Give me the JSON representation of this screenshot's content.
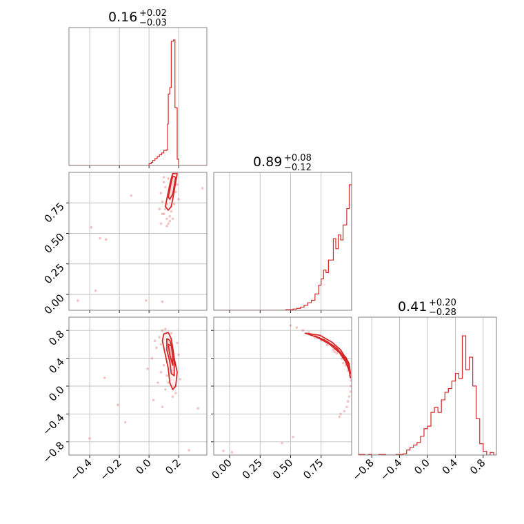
{
  "chart_data": {
    "type": "corner",
    "color": "#d62728",
    "parameters": [
      {
        "median": "0.16",
        "plus": "+0.02",
        "minus": "−0.03",
        "range": [
          -0.54,
          0.39
        ]
      },
      {
        "median": "0.89",
        "plus": "+0.08",
        "minus": "−0.12",
        "range": [
          -0.13,
          1.0
        ]
      },
      {
        "median": "0.41",
        "plus": "+0.20",
        "minus": "−0.28",
        "range": [
          -0.99,
          0.99
        ]
      }
    ],
    "ticks": [
      [
        {
          "v": -0.4,
          "l": "−0.4"
        },
        {
          "v": -0.2,
          "l": "−0.2"
        },
        {
          "v": 0.0,
          "l": "0.0"
        },
        {
          "v": 0.2,
          "l": "0.2"
        }
      ],
      [
        {
          "v": 0.0,
          "l": "0.00"
        },
        {
          "v": 0.25,
          "l": "0.25"
        },
        {
          "v": 0.5,
          "l": "0.50"
        },
        {
          "v": 0.75,
          "l": "0.75"
        }
      ],
      [
        {
          "v": -0.8,
          "l": "−0.8"
        },
        {
          "v": -0.4,
          "l": "−0.4"
        },
        {
          "v": 0.0,
          "l": "0.0"
        },
        {
          "v": 0.4,
          "l": "0.4"
        },
        {
          "v": 0.8,
          "l": "0.8"
        }
      ]
    ],
    "histograms": [
      {
        "bins": [
          [
            -0.03,
            0.0
          ],
          [
            0.0,
            0.015
          ],
          [
            0.015,
            0.025
          ],
          [
            0.025,
            0.04
          ],
          [
            0.04,
            0.055
          ],
          [
            0.055,
            0.07
          ],
          [
            0.07,
            0.085
          ],
          [
            0.085,
            0.1
          ],
          [
            0.1,
            0.12
          ],
          [
            0.12,
            0.125
          ],
          [
            0.125,
            0.33
          ],
          [
            0.13,
            0.57
          ],
          [
            0.14,
            0.62
          ],
          [
            0.15,
            0.99
          ],
          [
            0.165,
            1.0
          ],
          [
            0.175,
            0.46
          ],
          [
            0.18,
            0.46
          ],
          [
            0.19,
            0.05
          ],
          [
            0.2,
            0.0
          ],
          [
            0.21,
            0.0
          ]
        ]
      },
      {
        "bins": [
          [
            0.43,
            0.0
          ],
          [
            0.46,
            0.005
          ],
          [
            0.49,
            0.005
          ],
          [
            0.52,
            0.01
          ],
          [
            0.55,
            0.015
          ],
          [
            0.58,
            0.025
          ],
          [
            0.61,
            0.04
          ],
          [
            0.64,
            0.06
          ],
          [
            0.67,
            0.08
          ],
          [
            0.7,
            0.13
          ],
          [
            0.73,
            0.2
          ],
          [
            0.75,
            0.25
          ],
          [
            0.77,
            0.32
          ],
          [
            0.79,
            0.3
          ],
          [
            0.81,
            0.4
          ],
          [
            0.83,
            0.4
          ],
          [
            0.85,
            0.57
          ],
          [
            0.87,
            0.49
          ],
          [
            0.89,
            0.6
          ],
          [
            0.91,
            0.56
          ],
          [
            0.93,
            0.68
          ],
          [
            0.95,
            0.68
          ],
          [
            0.96,
            0.81
          ],
          [
            0.98,
            1.0
          ]
        ]
      },
      {
        "bins": [
          [
            -0.99,
            0.005
          ],
          [
            -0.95,
            0.005
          ],
          [
            -0.9,
            0.0
          ],
          [
            -0.85,
            0.005
          ],
          [
            -0.8,
            0.0
          ],
          [
            -0.7,
            0.005
          ],
          [
            -0.65,
            0.005
          ],
          [
            -0.6,
            0.0
          ],
          [
            -0.55,
            0.0
          ],
          [
            -0.5,
            0.0
          ],
          [
            -0.45,
            0.005
          ],
          [
            -0.4,
            0.005
          ],
          [
            -0.35,
            0.01
          ],
          [
            -0.3,
            0.04
          ],
          [
            -0.25,
            0.06
          ],
          [
            -0.2,
            0.08
          ],
          [
            -0.15,
            0.1
          ],
          [
            -0.1,
            0.15
          ],
          [
            -0.05,
            0.21
          ],
          [
            0.0,
            0.23
          ],
          [
            0.05,
            0.34
          ],
          [
            0.1,
            0.38
          ],
          [
            0.15,
            0.34
          ],
          [
            0.2,
            0.44
          ],
          [
            0.25,
            0.5
          ],
          [
            0.3,
            0.53
          ],
          [
            0.35,
            0.59
          ],
          [
            0.4,
            0.65
          ],
          [
            0.45,
            0.61
          ],
          [
            0.5,
            0.95
          ],
          [
            0.55,
            0.68
          ],
          [
            0.6,
            0.78
          ],
          [
            0.65,
            0.55
          ],
          [
            0.7,
            0.29
          ],
          [
            0.75,
            0.09
          ],
          [
            0.8,
            0.03
          ],
          [
            0.85,
            0.0
          ],
          [
            0.9,
            0.02
          ],
          [
            0.95,
            0.0
          ]
        ]
      }
    ],
    "pairs": [
      {
        "x": 0,
        "y": 1,
        "contours": [
          [
            [
              0.11,
              0.72
            ],
            [
              0.12,
              0.78
            ],
            [
              0.13,
              0.84
            ],
            [
              0.14,
              0.9
            ],
            [
              0.15,
              0.95
            ],
            [
              0.16,
              0.99
            ],
            [
              0.19,
              0.99
            ],
            [
              0.18,
              0.92
            ],
            [
              0.17,
              0.85
            ],
            [
              0.16,
              0.78
            ],
            [
              0.15,
              0.72
            ],
            [
              0.13,
              0.69
            ],
            [
              0.11,
              0.72
            ]
          ],
          [
            [
              0.13,
              0.8
            ],
            [
              0.14,
              0.86
            ],
            [
              0.15,
              0.92
            ],
            [
              0.16,
              0.97
            ],
            [
              0.18,
              0.96
            ],
            [
              0.17,
              0.89
            ],
            [
              0.16,
              0.82
            ],
            [
              0.14,
              0.78
            ],
            [
              0.13,
              0.8
            ]
          ]
        ],
        "scatter": [
          [
            0.1,
            0.66
          ],
          [
            0.12,
            0.62
          ],
          [
            0.13,
            0.58
          ],
          [
            0.11,
            0.7
          ],
          [
            0.14,
            0.64
          ],
          [
            0.09,
            0.76
          ],
          [
            0.15,
            0.68
          ],
          [
            0.12,
            0.74
          ],
          [
            0.08,
            0.83
          ],
          [
            0.17,
            0.74
          ],
          [
            0.11,
            0.88
          ],
          [
            0.1,
            0.92
          ],
          [
            0.18,
            0.84
          ],
          [
            0.13,
            0.95
          ],
          [
            0.09,
            0.66
          ],
          [
            0.14,
            0.6
          ],
          [
            0.12,
            0.56
          ],
          [
            0.1,
            0.96
          ],
          [
            0.16,
            0.62
          ],
          [
            0.19,
            0.9
          ],
          [
            0.07,
            0.7
          ],
          [
            0.08,
            0.58
          ],
          [
            0.2,
            0.78
          ],
          [
            -0.39,
            0.55
          ],
          [
            -0.33,
            0.46
          ],
          [
            -0.29,
            0.45
          ],
          [
            -0.12,
            0.81
          ],
          [
            -0.02,
            -0.05
          ],
          [
            -0.36,
            0.03
          ],
          [
            0.09,
            -0.06
          ],
          [
            -0.48,
            -0.05
          ],
          [
            0.36,
            0.87
          ]
        ]
      },
      {
        "x": 0,
        "y": 2,
        "contours": [
          [
            [
              0.1,
              0.75
            ],
            [
              0.09,
              0.65
            ],
            [
              0.11,
              0.45
            ],
            [
              0.13,
              0.25
            ],
            [
              0.14,
              0.05
            ],
            [
              0.16,
              -0.05
            ],
            [
              0.18,
              0.0
            ],
            [
              0.19,
              0.2
            ],
            [
              0.17,
              0.4
            ],
            [
              0.16,
              0.55
            ],
            [
              0.15,
              0.68
            ],
            [
              0.13,
              0.77
            ],
            [
              0.1,
              0.75
            ]
          ],
          [
            [
              0.12,
              0.68
            ],
            [
              0.12,
              0.52
            ],
            [
              0.14,
              0.35
            ],
            [
              0.15,
              0.18
            ],
            [
              0.17,
              0.15
            ],
            [
              0.17,
              0.35
            ],
            [
              0.16,
              0.52
            ],
            [
              0.14,
              0.66
            ],
            [
              0.12,
              0.68
            ]
          ],
          [
            [
              0.13,
              0.6
            ],
            [
              0.14,
              0.45
            ],
            [
              0.16,
              0.3
            ],
            [
              0.16,
              0.45
            ],
            [
              0.15,
              0.58
            ],
            [
              0.13,
              0.6
            ]
          ]
        ],
        "scatter": [
          [
            0.09,
            0.8
          ],
          [
            0.07,
            0.7
          ],
          [
            0.11,
            0.82
          ],
          [
            0.15,
            0.76
          ],
          [
            0.08,
            0.6
          ],
          [
            0.1,
            0.3
          ],
          [
            0.12,
            0.15
          ],
          [
            0.18,
            -0.1
          ],
          [
            0.05,
            0.55
          ],
          [
            0.2,
            0.45
          ],
          [
            0.08,
            0.2
          ],
          [
            0.16,
            -0.15
          ],
          [
            0.06,
            0.05
          ],
          [
            0.11,
            -0.05
          ],
          [
            0.19,
            0.62
          ],
          [
            0.13,
            0.05
          ],
          [
            0.02,
            0.4
          ],
          [
            0.03,
            -0.2
          ],
          [
            0.04,
            0.65
          ],
          [
            0.21,
            0.1
          ],
          [
            -0.01,
            0.25
          ],
          [
            0.09,
            -0.3
          ],
          [
            -0.4,
            -0.75
          ],
          [
            -0.16,
            -0.52
          ],
          [
            -0.21,
            -0.27
          ],
          [
            0.33,
            -0.32
          ],
          [
            -0.3,
            0.12
          ],
          [
            0.27,
            -0.92
          ]
        ]
      },
      {
        "x": 1,
        "y": 2,
        "contours": [
          [
            [
              0.62,
              0.76
            ],
            [
              0.72,
              0.7
            ],
            [
              0.82,
              0.6
            ],
            [
              0.9,
              0.48
            ],
            [
              0.95,
              0.35
            ],
            [
              0.98,
              0.22
            ],
            [
              0.99,
              0.12
            ],
            [
              0.98,
              0.25
            ],
            [
              0.96,
              0.38
            ],
            [
              0.91,
              0.52
            ],
            [
              0.84,
              0.63
            ],
            [
              0.74,
              0.73
            ],
            [
              0.62,
              0.76
            ]
          ],
          [
            [
              0.7,
              0.72
            ],
            [
              0.78,
              0.66
            ],
            [
              0.86,
              0.57
            ],
            [
              0.92,
              0.45
            ],
            [
              0.96,
              0.33
            ],
            [
              0.94,
              0.42
            ],
            [
              0.88,
              0.54
            ],
            [
              0.8,
              0.64
            ],
            [
              0.7,
              0.72
            ]
          ],
          [
            [
              0.92,
              0.44
            ],
            [
              0.96,
              0.36
            ],
            [
              0.98,
              0.28
            ],
            [
              0.99,
              0.18
            ],
            [
              0.98,
              0.32
            ],
            [
              0.95,
              0.42
            ],
            [
              0.92,
              0.44
            ]
          ]
        ],
        "scatter": [
          [
            0.5,
            0.87
          ],
          [
            0.55,
            0.84
          ],
          [
            0.6,
            0.8
          ],
          [
            0.65,
            0.77
          ],
          [
            0.7,
            0.7
          ],
          [
            0.75,
            0.66
          ],
          [
            0.8,
            0.59
          ],
          [
            0.85,
            0.52
          ],
          [
            0.88,
            0.47
          ],
          [
            0.92,
            0.39
          ],
          [
            0.95,
            0.3
          ],
          [
            0.97,
            0.22
          ],
          [
            0.985,
            0.15
          ],
          [
            0.995,
            0.08
          ],
          [
            0.995,
            0.0
          ],
          [
            0.99,
            -0.08
          ],
          [
            0.98,
            -0.15
          ],
          [
            0.97,
            -0.22
          ],
          [
            0.96,
            -0.3
          ],
          [
            0.94,
            -0.36
          ],
          [
            0.91,
            -0.4
          ],
          [
            0.93,
            0.33
          ],
          [
            0.86,
            0.49
          ],
          [
            0.72,
            0.69
          ],
          [
            -0.05,
            -0.93
          ],
          [
            0.02,
            -0.95
          ],
          [
            0.43,
            -0.82
          ],
          [
            0.52,
            -0.73
          ],
          [
            0.9,
            -0.44
          ]
        ]
      }
    ]
  }
}
